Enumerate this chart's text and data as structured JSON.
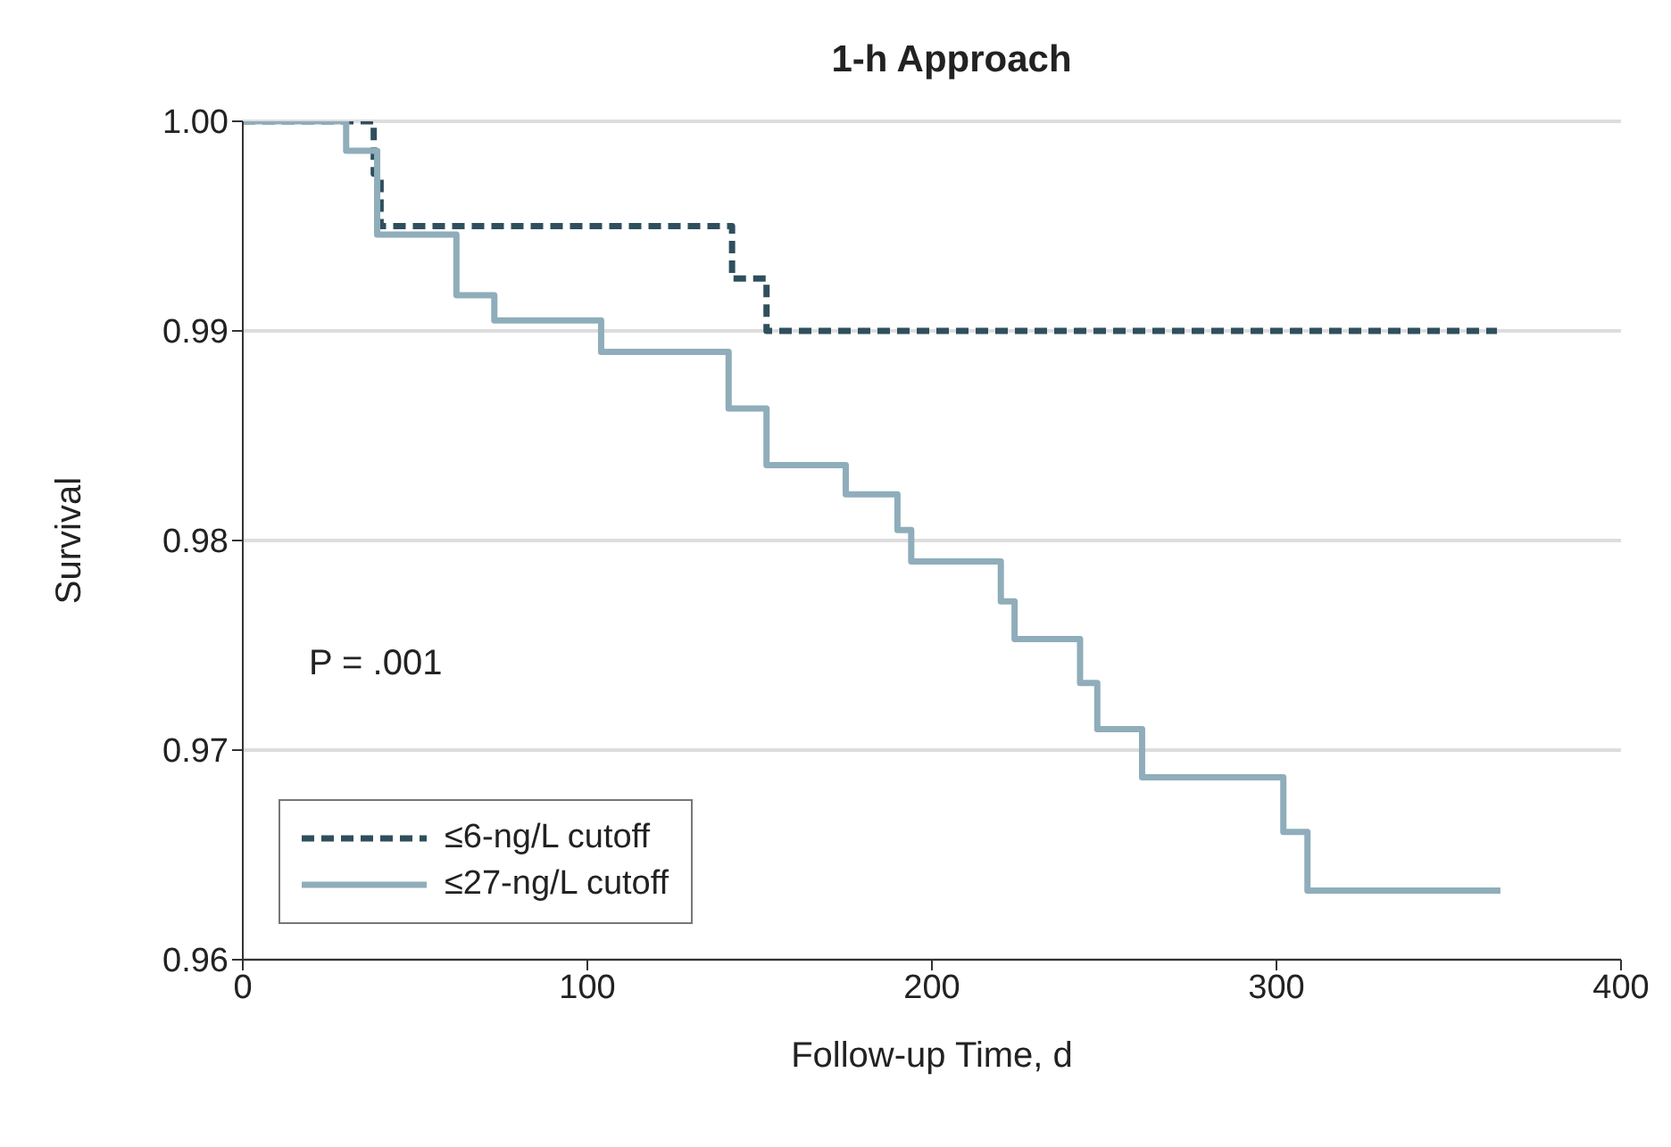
{
  "chart_data": {
    "type": "step",
    "title": "1-h Approach",
    "xlabel": "Follow-up Time, d",
    "ylabel": "Survival",
    "xlim": [
      0,
      400
    ],
    "xticks": [
      0,
      100,
      200,
      300,
      400
    ],
    "ylim": [
      0.96,
      1.0
    ],
    "yticks": [
      {
        "value": 0.96,
        "label": "0.96"
      },
      {
        "value": 0.97,
        "label": "0.97"
      },
      {
        "value": 0.98,
        "label": "0.98"
      },
      {
        "value": 0.99,
        "label": "0.99"
      },
      {
        "value": 1.0,
        "label": "1.00"
      }
    ],
    "grid": "y",
    "legend": "bottom left",
    "annotations": [
      "P = .001"
    ],
    "series": [
      {
        "name": "≤6-ng/L cutoff",
        "color": "#2f4f5c",
        "line_style": "dashed",
        "x": [
          0,
          38,
          40,
          142,
          152,
          364
        ],
        "values": [
          1.0,
          0.9975,
          0.995,
          0.9925,
          0.99,
          0.99
        ]
      },
      {
        "name": "≤27-ng/L cutoff",
        "color": "#8fadba",
        "line_style": "solid",
        "x": [
          0,
          30,
          39,
          62,
          73,
          104,
          141,
          152,
          175,
          190,
          194,
          220,
          224,
          243,
          248,
          261,
          302,
          309,
          365
        ],
        "values": [
          1.0,
          0.9986,
          0.9946,
          0.9917,
          0.9905,
          0.989,
          0.9863,
          0.9836,
          0.9822,
          0.9805,
          0.979,
          0.9771,
          0.9753,
          0.9732,
          0.971,
          0.9687,
          0.9661,
          0.9633,
          0.9633
        ]
      }
    ]
  }
}
